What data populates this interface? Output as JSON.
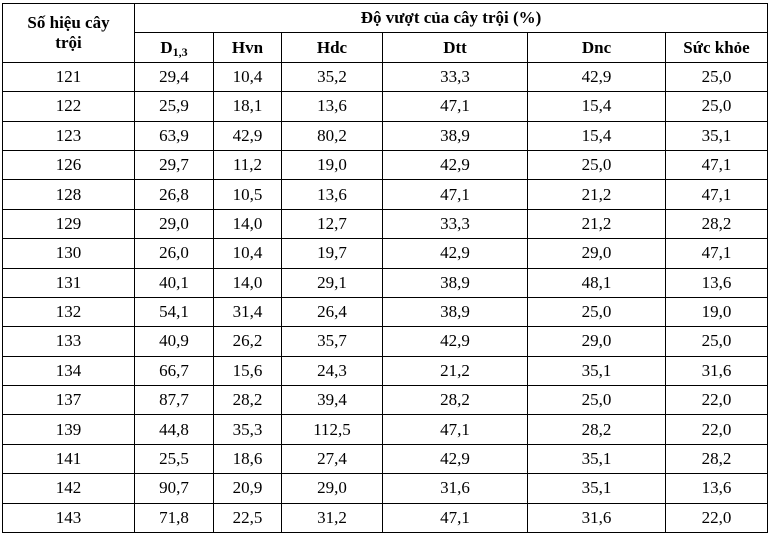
{
  "table": {
    "header": {
      "first_col_line1": "Số hiệu cây",
      "first_col_line2": "trội",
      "group_title": "Độ vượt của cây trội (%)",
      "d13_main": "D",
      "d13_sub": "1,3",
      "columns": [
        "Hvn",
        "Hdc",
        "Dtt",
        "Dnc",
        "Sức khỏe"
      ]
    },
    "rows": [
      [
        "121",
        "29,4",
        "10,4",
        "35,2",
        "33,3",
        "42,9",
        "25,0"
      ],
      [
        "122",
        "25,9",
        "18,1",
        "13,6",
        "47,1",
        "15,4",
        "25,0"
      ],
      [
        "123",
        "63,9",
        "42,9",
        "80,2",
        "38,9",
        "15,4",
        "35,1"
      ],
      [
        "126",
        "29,7",
        "11,2",
        "19,0",
        "42,9",
        "25,0",
        "47,1"
      ],
      [
        "128",
        "26,8",
        "10,5",
        "13,6",
        "47,1",
        "21,2",
        "47,1"
      ],
      [
        "129",
        "29,0",
        "14,0",
        "12,7",
        "33,3",
        "21,2",
        "28,2"
      ],
      [
        "130",
        "26,0",
        "10,4",
        "19,7",
        "42,9",
        "29,0",
        "47,1"
      ],
      [
        "131",
        "40,1",
        "14,0",
        "29,1",
        "38,9",
        "48,1",
        "13,6"
      ],
      [
        "132",
        "54,1",
        "31,4",
        "26,4",
        "38,9",
        "25,0",
        "19,0"
      ],
      [
        "133",
        "40,9",
        "26,2",
        "35,7",
        "42,9",
        "29,0",
        "25,0"
      ],
      [
        "134",
        "66,7",
        "15,6",
        "24,3",
        "21,2",
        "35,1",
        "31,6"
      ],
      [
        "137",
        "87,7",
        "28,2",
        "39,4",
        "28,2",
        "25,0",
        "22,0"
      ],
      [
        "139",
        "44,8",
        "35,3",
        "112,5",
        "47,1",
        "28,2",
        "22,0"
      ],
      [
        "141",
        "25,5",
        "18,6",
        "27,4",
        "42,9",
        "35,1",
        "28,2"
      ],
      [
        "142",
        "90,7",
        "20,9",
        "29,0",
        "31,6",
        "35,1",
        "13,6"
      ],
      [
        "143",
        "71,8",
        "22,5",
        "31,2",
        "47,1",
        "31,6",
        "22,0"
      ]
    ]
  }
}
